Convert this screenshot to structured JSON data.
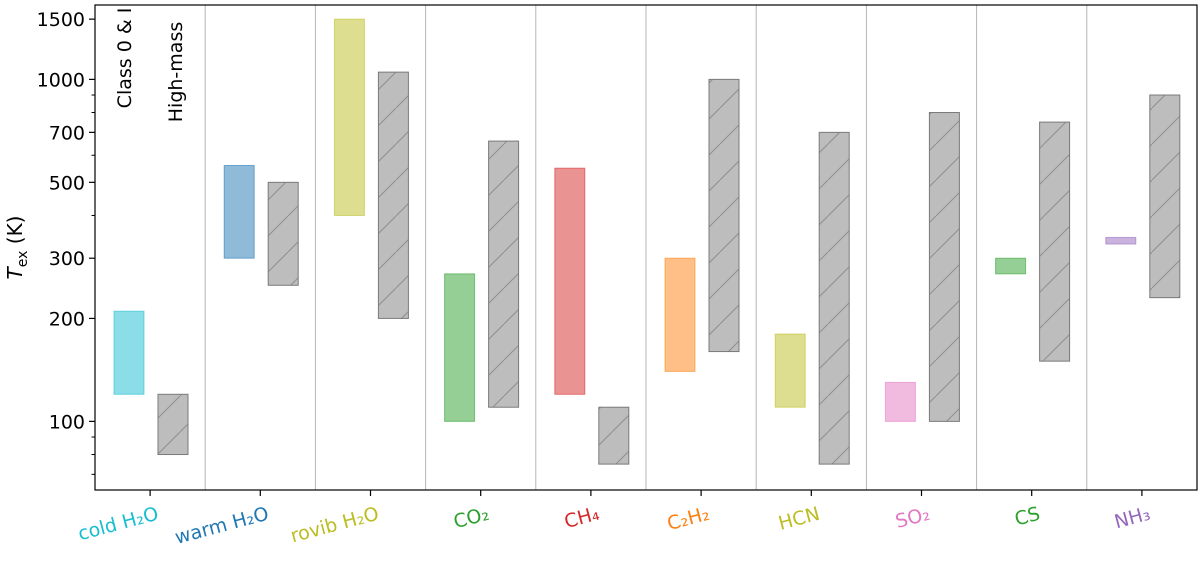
{
  "chart_data": {
    "type": "range-bar",
    "ylabel": "T_ex (K)",
    "yscale": "log",
    "ylim": [
      63,
      1650
    ],
    "yticks": [
      100,
      200,
      300,
      500,
      700,
      1000,
      1500
    ],
    "grid": false,
    "legend": {
      "placement": "top-left",
      "entries": [
        "Class 0 & I",
        "High-mass"
      ]
    },
    "categories": [
      {
        "label": "cold H₂O",
        "color": "#17becf"
      },
      {
        "label": "warm H₂O",
        "color": "#1f77b4"
      },
      {
        "label": "rovib H₂O",
        "color": "#bcbd22"
      },
      {
        "label": "CO₂",
        "color": "#2ca02c"
      },
      {
        "label": "CH₄",
        "color": "#d62728"
      },
      {
        "label": "C₂H₂",
        "color": "#ff7f0e"
      },
      {
        "label": "HCN",
        "color": "#bcbd22"
      },
      {
        "label": "SO₂",
        "color": "#e377c2"
      },
      {
        "label": "CS",
        "color": "#2ca02c"
      },
      {
        "label": "NH₃",
        "color": "#9467bd"
      }
    ],
    "series": [
      {
        "name": "Class 0 & I",
        "ranges": [
          [
            120,
            210
          ],
          [
            300,
            560
          ],
          [
            400,
            1500
          ],
          [
            100,
            270
          ],
          [
            120,
            550
          ],
          [
            140,
            300
          ],
          [
            110,
            180
          ],
          [
            100,
            130
          ],
          [
            270,
            300
          ],
          [
            330,
            345
          ]
        ]
      },
      {
        "name": "High-mass",
        "ranges": [
          [
            80,
            120
          ],
          [
            250,
            500
          ],
          [
            200,
            1050
          ],
          [
            110,
            660
          ],
          [
            75,
            110
          ],
          [
            160,
            1000
          ],
          [
            75,
            700
          ],
          [
            100,
            800
          ],
          [
            150,
            750
          ],
          [
            230,
            900
          ]
        ]
      }
    ],
    "high_mass_color": "#b0b0b0"
  }
}
